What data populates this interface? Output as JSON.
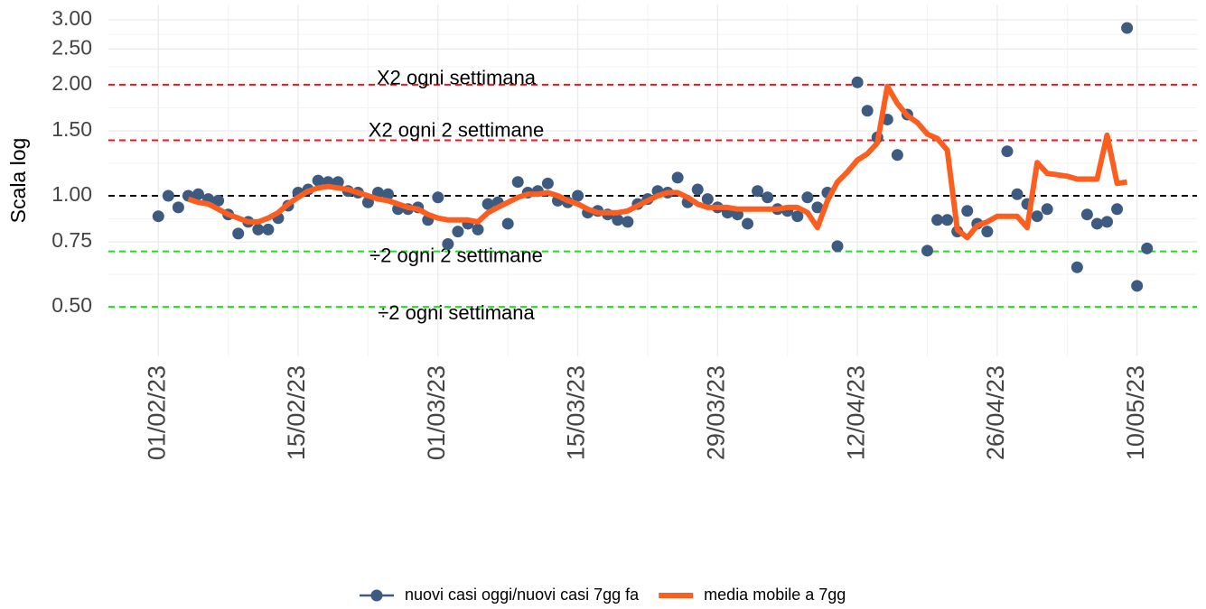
{
  "chart_data": {
    "type": "line",
    "y_label": "Scala log",
    "log_y": true,
    "grid": true,
    "xlim": [
      "2023-01-27",
      "2023-05-16"
    ],
    "xticks": [
      {
        "value": "2023-02-01",
        "label": "01/02/23"
      },
      {
        "value": "2023-02-15",
        "label": "15/02/23"
      },
      {
        "value": "2023-03-01",
        "label": "01/03/23"
      },
      {
        "value": "2023-03-15",
        "label": "15/03/23"
      },
      {
        "value": "2023-03-29",
        "label": "29/03/23"
      },
      {
        "value": "2023-04-12",
        "label": "12/04/23"
      },
      {
        "value": "2023-04-26",
        "label": "26/04/23"
      },
      {
        "value": "2023-05-10",
        "label": "10/05/23"
      }
    ],
    "ylim": [
      0.367,
      3.3
    ],
    "yticks": [
      {
        "value": 0.5,
        "label": "0.50"
      },
      0.75,
      {
        "value": 1,
        "label": "1.00"
      },
      {
        "value": 1.5,
        "label": "1.50"
      },
      {
        "value": 2,
        "label": "2.00"
      },
      {
        "value": 2.5,
        "label": "2.50"
      },
      {
        "value": 3,
        "label": "3.00"
      }
    ],
    "reference_lines": [
      {
        "value": 2,
        "label": "X2 ogni settimana",
        "color": "#e41a1c"
      },
      {
        "value": 1.414,
        "label": "X2 ogni 2 settimane",
        "color": "#e41a1c"
      },
      {
        "value": 1,
        "color": "#000000"
      },
      {
        "value": 0.707,
        "label": "÷2 ogni 2 settimane",
        "color": "#22dd22"
      },
      {
        "value": 0.5,
        "label": "÷2 ogni settimana",
        "color": "#22dd22"
      }
    ],
    "series": [
      {
        "name": "nuovi casi oggi/nuovi casi 7gg fa",
        "color": "#3d5a80",
        "style": "points",
        "x": [
          "2023-02-01",
          "2023-02-02",
          "2023-02-03",
          "2023-02-04",
          "2023-02-05",
          "2023-02-06",
          "2023-02-07",
          "2023-02-08",
          "2023-02-09",
          "2023-02-10",
          "2023-02-11",
          "2023-02-12",
          "2023-02-13",
          "2023-02-14",
          "2023-02-15",
          "2023-02-16",
          "2023-02-17",
          "2023-02-18",
          "2023-02-19",
          "2023-02-20",
          "2023-02-21",
          "2023-02-22",
          "2023-02-23",
          "2023-02-24",
          "2023-02-25",
          "2023-02-26",
          "2023-02-27",
          "2023-02-28",
          "2023-03-01",
          "2023-03-02",
          "2023-03-03",
          "2023-03-04",
          "2023-03-05",
          "2023-03-06",
          "2023-03-07",
          "2023-03-08",
          "2023-03-09",
          "2023-03-10",
          "2023-03-11",
          "2023-03-12",
          "2023-03-13",
          "2023-03-14",
          "2023-03-15",
          "2023-03-16",
          "2023-03-17",
          "2023-03-18",
          "2023-03-19",
          "2023-03-20",
          "2023-03-21",
          "2023-03-22",
          "2023-03-23",
          "2023-03-24",
          "2023-03-25",
          "2023-03-26",
          "2023-03-27",
          "2023-03-28",
          "2023-03-29",
          "2023-03-30",
          "2023-03-31",
          "2023-04-01",
          "2023-04-02",
          "2023-04-03",
          "2023-04-04",
          "2023-04-05",
          "2023-04-06",
          "2023-04-07",
          "2023-04-08",
          "2023-04-09",
          "2023-04-10",
          "2023-04-12",
          "2023-04-13",
          "2023-04-14",
          "2023-04-15",
          "2023-04-16",
          "2023-04-17",
          "2023-04-19",
          "2023-04-20",
          "2023-04-21",
          "2023-04-22",
          "2023-04-23",
          "2023-04-24",
          "2023-04-25",
          "2023-04-27",
          "2023-04-28",
          "2023-04-29",
          "2023-04-30",
          "2023-05-01",
          "2023-05-04",
          "2023-05-05",
          "2023-05-06",
          "2023-05-07",
          "2023-05-08",
          "2023-05-09",
          "2023-05-10",
          "2023-05-11"
        ],
        "values": [
          0.88,
          1.0,
          0.93,
          1.0,
          1.01,
          0.98,
          0.97,
          0.89,
          0.79,
          0.85,
          0.81,
          0.81,
          0.87,
          0.94,
          1.02,
          1.04,
          1.1,
          1.09,
          1.09,
          1.03,
          1.02,
          0.96,
          1.02,
          1.01,
          0.92,
          0.92,
          0.93,
          0.86,
          0.99,
          0.74,
          0.8,
          0.84,
          0.81,
          0.95,
          0.96,
          0.84,
          1.09,
          1.02,
          1.03,
          1.08,
          0.97,
          0.96,
          1.0,
          0.9,
          0.91,
          0.89,
          0.86,
          0.85,
          0.95,
          0.98,
          1.03,
          1.02,
          1.12,
          0.96,
          1.04,
          0.98,
          0.93,
          0.9,
          0.89,
          0.84,
          1.03,
          0.99,
          0.92,
          0.91,
          0.88,
          0.99,
          0.93,
          1.02,
          0.73,
          2.03,
          1.7,
          1.44,
          1.61,
          1.29,
          1.66,
          0.71,
          0.86,
          0.86,
          0.8,
          0.91,
          0.84,
          0.8,
          1.32,
          1.01,
          0.95,
          0.88,
          0.92,
          0.64,
          0.89,
          0.84,
          0.85,
          0.92,
          2.85,
          0.57,
          0.72
        ]
      },
      {
        "name": "media mobile a 7gg",
        "color": "#fc5e1f",
        "style": "line",
        "x": [
          "2023-02-04",
          "2023-02-05",
          "2023-02-06",
          "2023-02-07",
          "2023-02-08",
          "2023-02-09",
          "2023-02-10",
          "2023-02-11",
          "2023-02-12",
          "2023-02-13",
          "2023-02-14",
          "2023-02-15",
          "2023-02-16",
          "2023-02-17",
          "2023-02-18",
          "2023-02-19",
          "2023-02-20",
          "2023-02-21",
          "2023-02-22",
          "2023-02-23",
          "2023-02-24",
          "2023-02-25",
          "2023-02-26",
          "2023-02-27",
          "2023-02-28",
          "2023-03-01",
          "2023-03-02",
          "2023-03-03",
          "2023-03-04",
          "2023-03-05",
          "2023-03-06",
          "2023-03-07",
          "2023-03-08",
          "2023-03-09",
          "2023-03-10",
          "2023-03-11",
          "2023-03-12",
          "2023-03-13",
          "2023-03-14",
          "2023-03-15",
          "2023-03-16",
          "2023-03-17",
          "2023-03-18",
          "2023-03-19",
          "2023-03-20",
          "2023-03-21",
          "2023-03-22",
          "2023-03-23",
          "2023-03-24",
          "2023-03-25",
          "2023-03-26",
          "2023-03-27",
          "2023-03-28",
          "2023-03-29",
          "2023-03-30",
          "2023-03-31",
          "2023-04-01",
          "2023-04-02",
          "2023-04-03",
          "2023-04-04",
          "2023-04-05",
          "2023-04-06",
          "2023-04-07",
          "2023-04-08",
          "2023-04-09",
          "2023-04-10",
          "2023-04-11",
          "2023-04-12",
          "2023-04-13",
          "2023-04-14",
          "2023-04-15",
          "2023-04-16",
          "2023-04-17",
          "2023-04-18",
          "2023-04-19",
          "2023-04-20",
          "2023-04-21",
          "2023-04-22",
          "2023-04-23",
          "2023-04-24",
          "2023-04-25",
          "2023-04-26",
          "2023-04-27",
          "2023-04-28",
          "2023-04-29",
          "2023-04-30",
          "2023-05-01",
          "2023-05-02",
          "2023-05-03",
          "2023-05-04",
          "2023-05-05",
          "2023-05-06",
          "2023-05-07",
          "2023-05-08",
          "2023-05-09"
        ],
        "values": [
          0.98,
          0.96,
          0.95,
          0.92,
          0.89,
          0.87,
          0.85,
          0.85,
          0.87,
          0.9,
          0.95,
          0.99,
          1.03,
          1.05,
          1.06,
          1.05,
          1.04,
          1.02,
          1.0,
          0.98,
          0.97,
          0.95,
          0.93,
          0.92,
          0.89,
          0.87,
          0.86,
          0.86,
          0.86,
          0.85,
          0.9,
          0.93,
          0.96,
          0.99,
          1.01,
          1.01,
          1.02,
          1.0,
          0.97,
          0.95,
          0.92,
          0.9,
          0.9,
          0.9,
          0.91,
          0.94,
          0.97,
          1.0,
          1.02,
          1.02,
          0.99,
          0.95,
          0.93,
          0.93,
          0.93,
          0.92,
          0.92,
          0.92,
          0.92,
          0.92,
          0.93,
          0.93,
          0.9,
          0.82,
          0.97,
          1.09,
          1.16,
          1.25,
          1.3,
          1.39,
          1.98,
          1.78,
          1.65,
          1.58,
          1.47,
          1.43,
          1.33,
          0.81,
          0.77,
          0.83,
          0.85,
          0.88,
          0.88,
          0.88,
          0.82,
          1.23,
          1.15,
          1.14,
          1.13,
          1.11,
          1.11,
          1.11,
          1.46,
          1.08,
          1.09
        ]
      }
    ]
  }
}
